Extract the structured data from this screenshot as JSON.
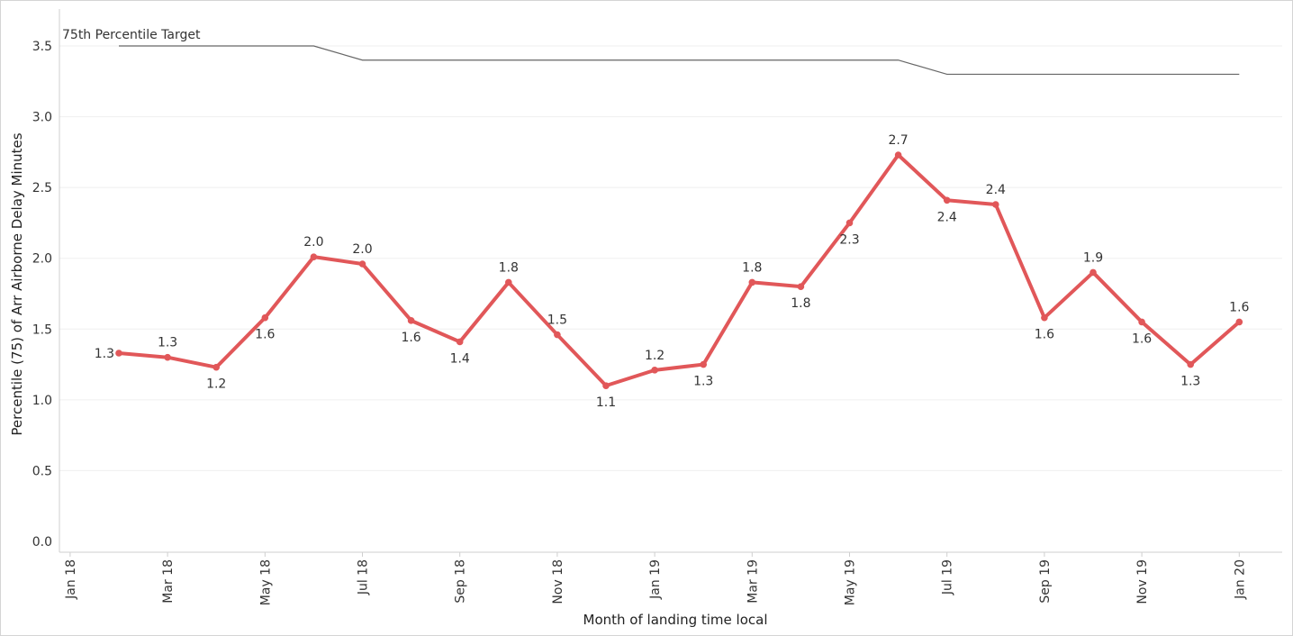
{
  "chart_data": {
    "type": "line",
    "title": "",
    "xlabel": "Month of landing time local",
    "ylabel": "Percentile (75) of Arr Airborne Delay Minutes",
    "ylim": [
      0,
      3.8
    ],
    "yticks": [
      "0.0",
      "0.5",
      "1.0",
      "1.5",
      "2.0",
      "2.5",
      "3.0",
      "3.5"
    ],
    "xticks": [
      "Jan 18",
      "Mar 18",
      "May 18",
      "Jul 18",
      "Sep 18",
      "Nov 18",
      "Jan 19",
      "Mar 19",
      "May 19",
      "Jul 19",
      "Sep 19",
      "Nov 19",
      "Jan 20"
    ],
    "x_range": [
      "2018-01",
      "2020-02"
    ],
    "grid": "horizontal",
    "series": [
      {
        "color": "#e15759",
        "x": [
          "2018-02",
          "2018-03",
          "2018-04",
          "2018-05",
          "2018-06",
          "2018-07",
          "2018-08",
          "2018-09",
          "2018-10",
          "2018-11",
          "2018-12",
          "2019-01",
          "2019-02",
          "2019-03",
          "2019-04",
          "2019-05",
          "2019-06",
          "2019-07",
          "2019-08",
          "2019-09",
          "2019-10",
          "2019-11",
          "2019-12",
          "2020-01"
        ],
        "values": [
          1.33,
          1.3,
          1.23,
          1.58,
          2.01,
          1.96,
          1.56,
          1.41,
          1.83,
          1.46,
          1.1,
          1.21,
          1.25,
          1.83,
          1.8,
          2.25,
          2.73,
          2.41,
          2.38,
          1.58,
          1.9,
          1.55,
          1.25,
          1.55
        ],
        "labels": [
          "1.3",
          "1.3",
          "1.2",
          "1.6",
          "2.0",
          "2.0",
          "1.6",
          "1.4",
          "1.8",
          "1.5",
          "1.1",
          "1.2",
          "1.3",
          "1.8",
          "1.8",
          "2.3",
          "2.7",
          "2.4",
          "2.4",
          "1.6",
          "1.9",
          "1.6",
          "1.3",
          "1.6"
        ],
        "label_pos": [
          "left",
          "above",
          "below",
          "below",
          "above",
          "above",
          "below",
          "below",
          "above",
          "above",
          "below",
          "above",
          "below",
          "above",
          "below",
          "below",
          "above",
          "below",
          "above",
          "below",
          "above",
          "below",
          "below",
          "above"
        ]
      }
    ],
    "reference_line": {
      "label": "75th Percentile Target",
      "color": "#666666",
      "x": [
        "2018-02",
        "2018-06",
        "2018-07",
        "2019-06",
        "2019-07",
        "2020-01"
      ],
      "values": [
        3.5,
        3.5,
        3.4,
        3.4,
        3.3,
        3.3
      ]
    }
  }
}
